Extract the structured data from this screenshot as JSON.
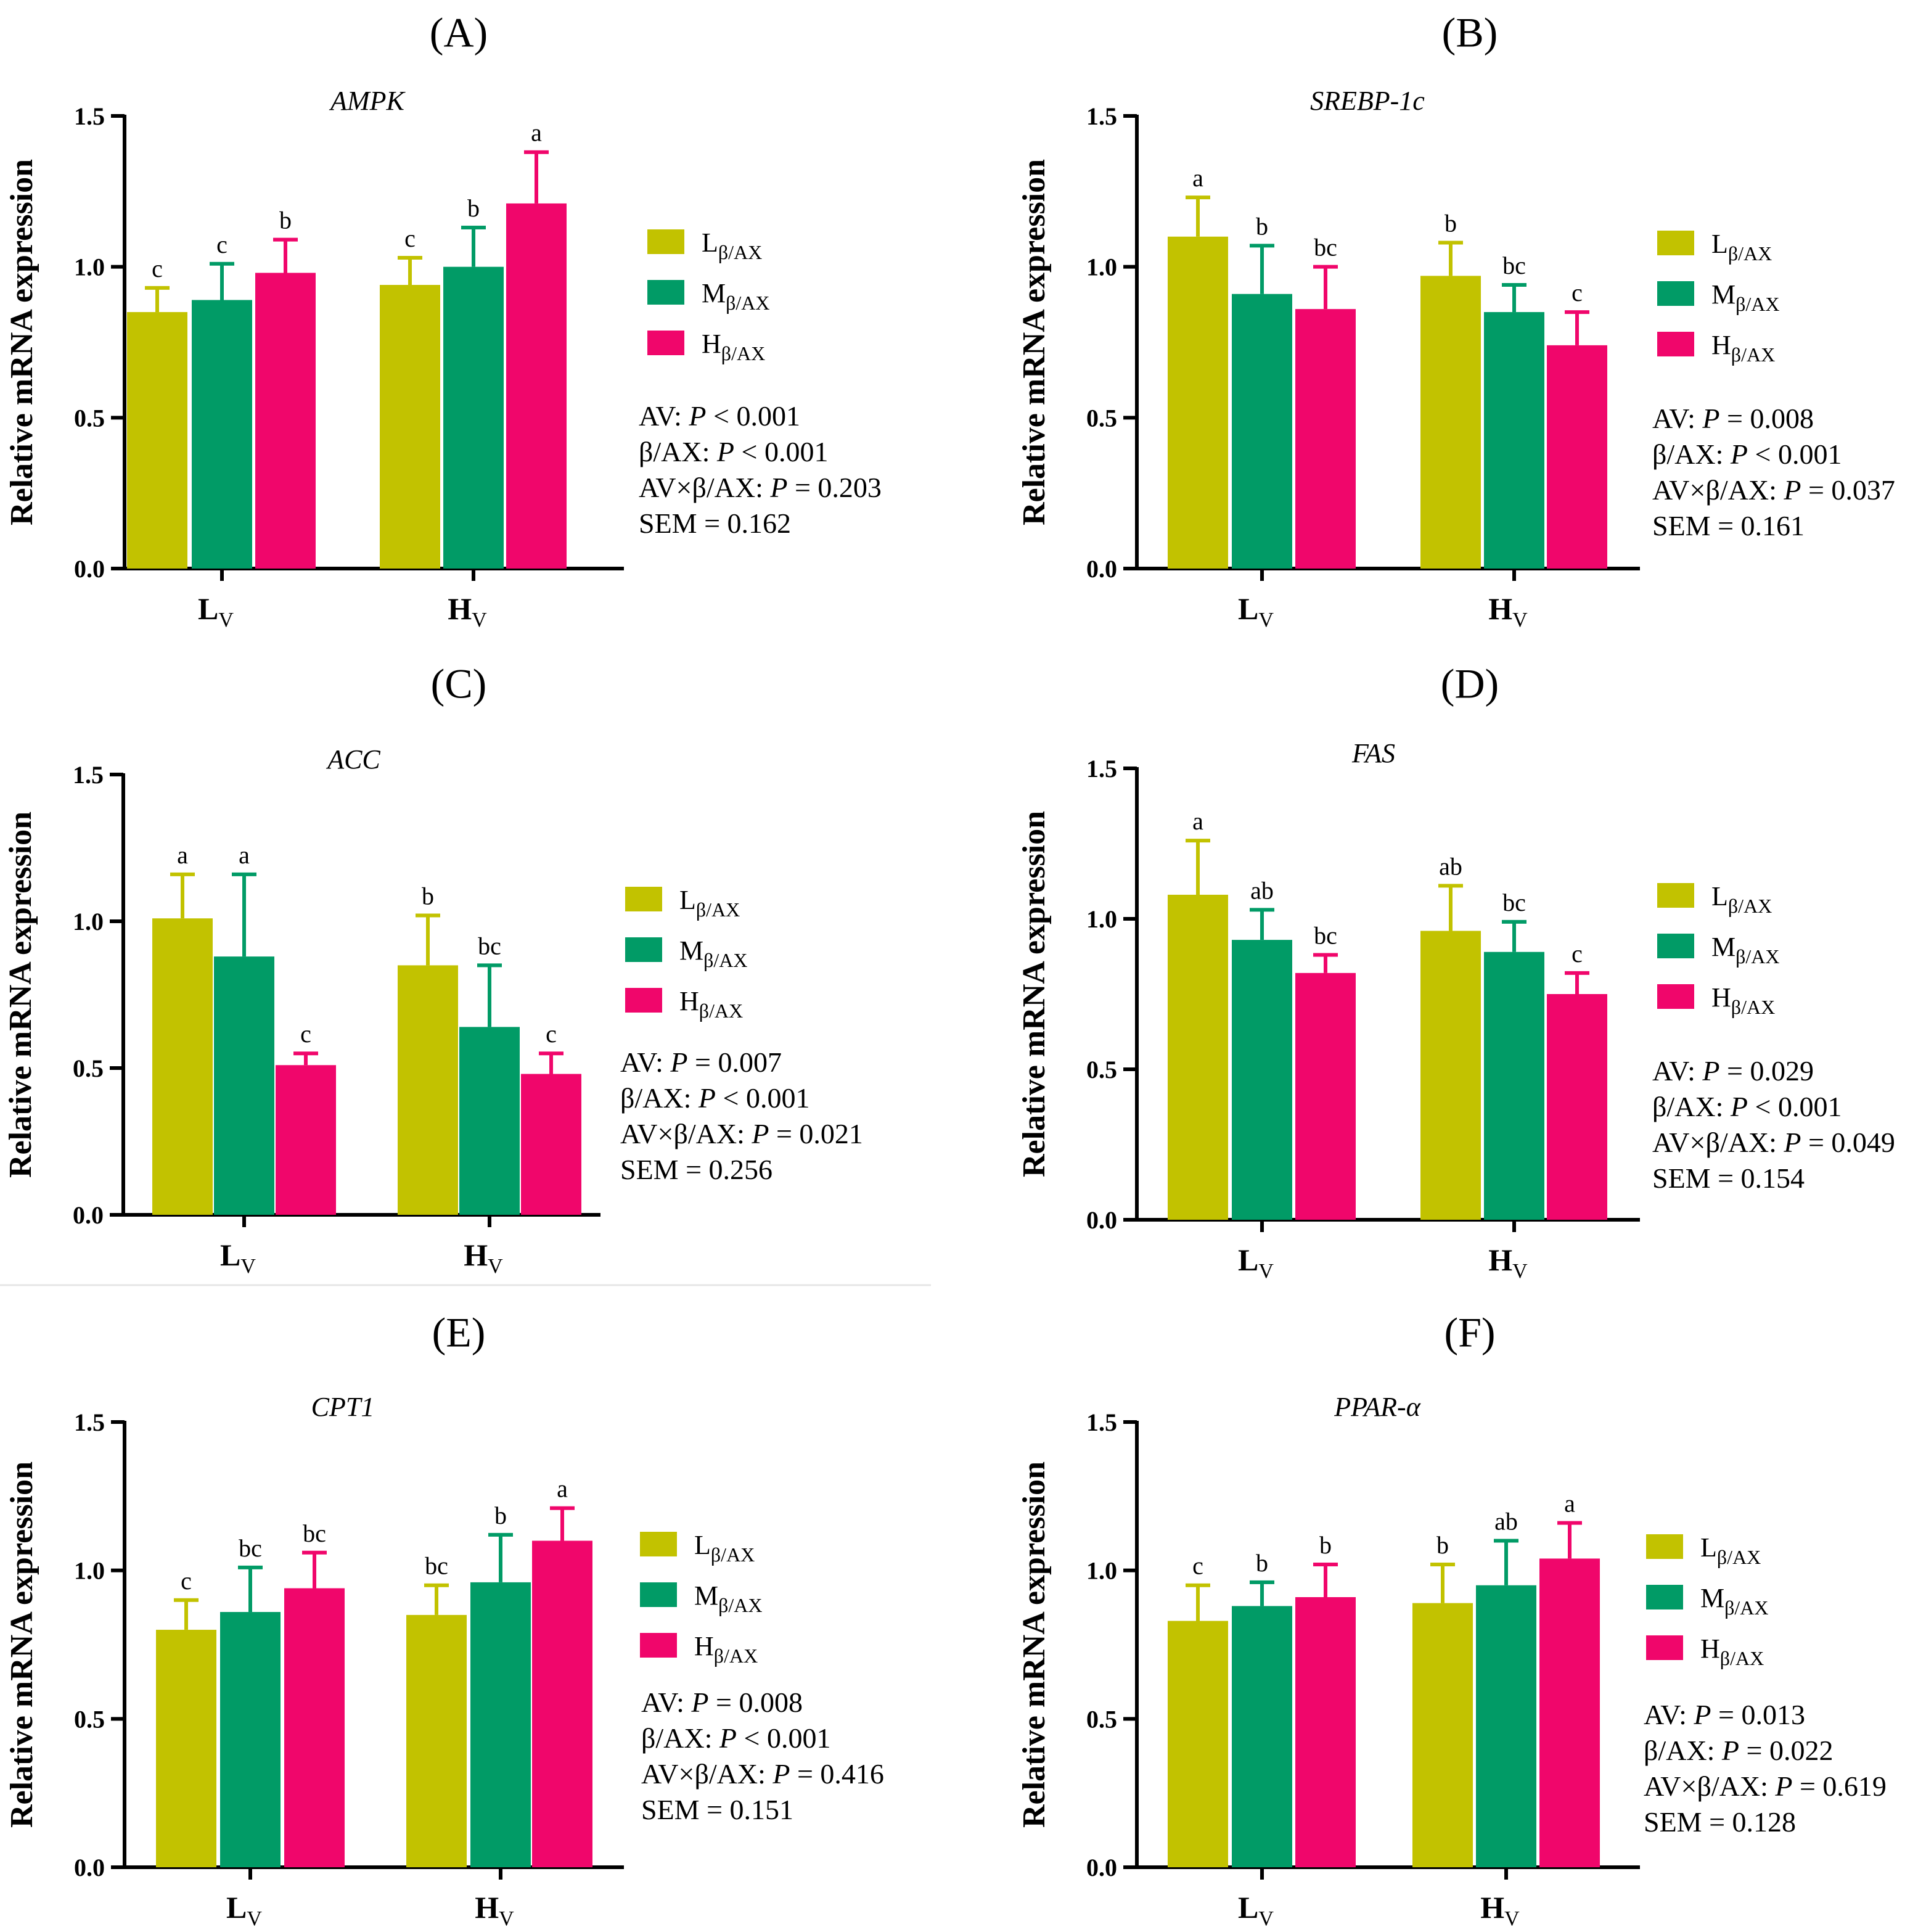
{
  "colors": {
    "L": "#c2c200",
    "M": "#019b66",
    "H": "#f0066b",
    "axis": "#000000"
  },
  "legend": [
    {
      "key": "L",
      "main": "L",
      "sub": "β/AX"
    },
    {
      "key": "M",
      "main": "M",
      "sub": "β/AX"
    },
    {
      "key": "H",
      "main": "H",
      "sub": "β/AX"
    }
  ],
  "ylabel": "Relative mRNA expression",
  "yticks": [
    "0.0",
    "0.5",
    "1.0",
    "1.5"
  ],
  "ylim": [
    0,
    1.5
  ],
  "xgroups": [
    {
      "main": "L",
      "sub": "V"
    },
    {
      "main": "H",
      "sub": "V"
    }
  ],
  "chart_data": [
    {
      "type": "bar",
      "panel": "(A)",
      "title": "AMPK",
      "categories": [
        "LV",
        "HV"
      ],
      "series": [
        {
          "name": "Lβ/AX",
          "values": [
            0.85,
            0.94
          ],
          "errors": [
            0.08,
            0.09
          ],
          "letters": [
            "c",
            "c"
          ]
        },
        {
          "name": "Mβ/AX",
          "values": [
            0.89,
            1.0
          ],
          "errors": [
            0.12,
            0.13
          ],
          "letters": [
            "c",
            "b"
          ]
        },
        {
          "name": "Hβ/AX",
          "values": [
            0.98,
            1.21
          ],
          "errors": [
            0.11,
            0.17
          ],
          "letters": [
            "b",
            "a"
          ]
        }
      ],
      "stats": [
        {
          "pre": "AV: ",
          "p": "P",
          "post": " < 0.001"
        },
        {
          "pre": "β/AX: ",
          "p": "P",
          "post": " < 0.001"
        },
        {
          "pre": "AV×β/AX: ",
          "p": "P",
          "post": " = 0.203"
        },
        {
          "pre": "SEM = 0.162",
          "p": "",
          "post": ""
        }
      ]
    },
    {
      "type": "bar",
      "panel": "(B)",
      "title": "SREBP-1c",
      "categories": [
        "LV",
        "HV"
      ],
      "series": [
        {
          "name": "Lβ/AX",
          "values": [
            1.1,
            0.97
          ],
          "errors": [
            0.13,
            0.11
          ],
          "letters": [
            "a",
            "b"
          ]
        },
        {
          "name": "Mβ/AX",
          "values": [
            0.91,
            0.85
          ],
          "errors": [
            0.16,
            0.09
          ],
          "letters": [
            "b",
            "bc"
          ]
        },
        {
          "name": "Hβ/AX",
          "values": [
            0.86,
            0.74
          ],
          "errors": [
            0.14,
            0.11
          ],
          "letters": [
            "bc",
            "c"
          ]
        }
      ],
      "stats": [
        {
          "pre": "AV: ",
          "p": "P",
          "post": " = 0.008"
        },
        {
          "pre": "β/AX: ",
          "p": "P",
          "post": " < 0.001"
        },
        {
          "pre": "AV×β/AX: ",
          "p": "P",
          "post": " = 0.037"
        },
        {
          "pre": "SEM = 0.161",
          "p": "",
          "post": ""
        }
      ]
    },
    {
      "type": "bar",
      "panel": "(C)",
      "title": "ACC",
      "categories": [
        "LV",
        "HV"
      ],
      "series": [
        {
          "name": "Lβ/AX",
          "values": [
            1.01,
            0.85
          ],
          "errors": [
            0.15,
            0.17
          ],
          "letters": [
            "a",
            "b"
          ]
        },
        {
          "name": "Mβ/AX",
          "values": [
            0.88,
            0.64
          ],
          "errors": [
            0.28,
            0.21
          ],
          "letters": [
            "a",
            "bc"
          ]
        },
        {
          "name": "Hβ/AX",
          "values": [
            0.51,
            0.48
          ],
          "errors": [
            0.04,
            0.07
          ],
          "letters": [
            "c",
            "c"
          ]
        }
      ],
      "stats": [
        {
          "pre": "AV: ",
          "p": "P",
          "post": " = 0.007"
        },
        {
          "pre": "β/AX: ",
          "p": "P",
          "post": " < 0.001"
        },
        {
          "pre": "AV×β/AX: ",
          "p": "P",
          "post": " = 0.021"
        },
        {
          "pre": "SEM = 0.256",
          "p": "",
          "post": ""
        }
      ]
    },
    {
      "type": "bar",
      "panel": "(D)",
      "title": "FAS",
      "categories": [
        "LV",
        "HV"
      ],
      "series": [
        {
          "name": "Lβ/AX",
          "values": [
            1.08,
            0.96
          ],
          "errors": [
            0.18,
            0.15
          ],
          "letters": [
            "a",
            "ab"
          ]
        },
        {
          "name": "Mβ/AX",
          "values": [
            0.93,
            0.89
          ],
          "errors": [
            0.1,
            0.1
          ],
          "letters": [
            "ab",
            "bc"
          ]
        },
        {
          "name": "Hβ/AX",
          "values": [
            0.82,
            0.75
          ],
          "errors": [
            0.06,
            0.07
          ],
          "letters": [
            "bc",
            "c"
          ]
        }
      ],
      "stats": [
        {
          "pre": "AV: ",
          "p": "P",
          "post": " = 0.029"
        },
        {
          "pre": "β/AX: ",
          "p": "P",
          "post": " < 0.001"
        },
        {
          "pre": "AV×β/AX: ",
          "p": "P",
          "post": " = 0.049"
        },
        {
          "pre": "SEM = 0.154",
          "p": "",
          "post": ""
        }
      ]
    },
    {
      "type": "bar",
      "panel": "(E)",
      "title": "CPT1",
      "categories": [
        "LV",
        "HV"
      ],
      "series": [
        {
          "name": "Lβ/AX",
          "values": [
            0.8,
            0.85
          ],
          "errors": [
            0.1,
            0.1
          ],
          "letters": [
            "c",
            "bc"
          ]
        },
        {
          "name": "Mβ/AX",
          "values": [
            0.86,
            0.96
          ],
          "errors": [
            0.15,
            0.16
          ],
          "letters": [
            "bc",
            "b"
          ]
        },
        {
          "name": "Hβ/AX",
          "values": [
            0.94,
            1.1
          ],
          "errors": [
            0.12,
            0.11
          ],
          "letters": [
            "bc",
            "a"
          ]
        }
      ],
      "stats": [
        {
          "pre": "AV: ",
          "p": "P",
          "post": " = 0.008"
        },
        {
          "pre": "β/AX: ",
          "p": "P",
          "post": " < 0.001"
        },
        {
          "pre": "AV×β/AX: ",
          "p": "P",
          "post": " = 0.416"
        },
        {
          "pre": "SEM = 0.151",
          "p": "",
          "post": ""
        }
      ]
    },
    {
      "type": "bar",
      "panel": "(F)",
      "title": "PPAR-α",
      "categories": [
        "LV",
        "HV"
      ],
      "series": [
        {
          "name": "Lβ/AX",
          "values": [
            0.83,
            0.89
          ],
          "errors": [
            0.12,
            0.13
          ],
          "letters": [
            "c",
            "b"
          ]
        },
        {
          "name": "Mβ/AX",
          "values": [
            0.88,
            0.95
          ],
          "errors": [
            0.08,
            0.15
          ],
          "letters": [
            "b",
            "ab"
          ]
        },
        {
          "name": "Hβ/AX",
          "values": [
            0.91,
            1.04
          ],
          "errors": [
            0.11,
            0.12
          ],
          "letters": [
            "b",
            "a"
          ]
        }
      ],
      "stats": [
        {
          "pre": "AV: ",
          "p": "P",
          "post": " = 0.013"
        },
        {
          "pre": "β/AX: ",
          "p": "P",
          "post": " = 0.022"
        },
        {
          "pre": "AV×β/AX: ",
          "p": "P",
          "post": " = 0.619"
        },
        {
          "pre": "SEM = 0.128",
          "p": "",
          "post": ""
        }
      ]
    }
  ]
}
